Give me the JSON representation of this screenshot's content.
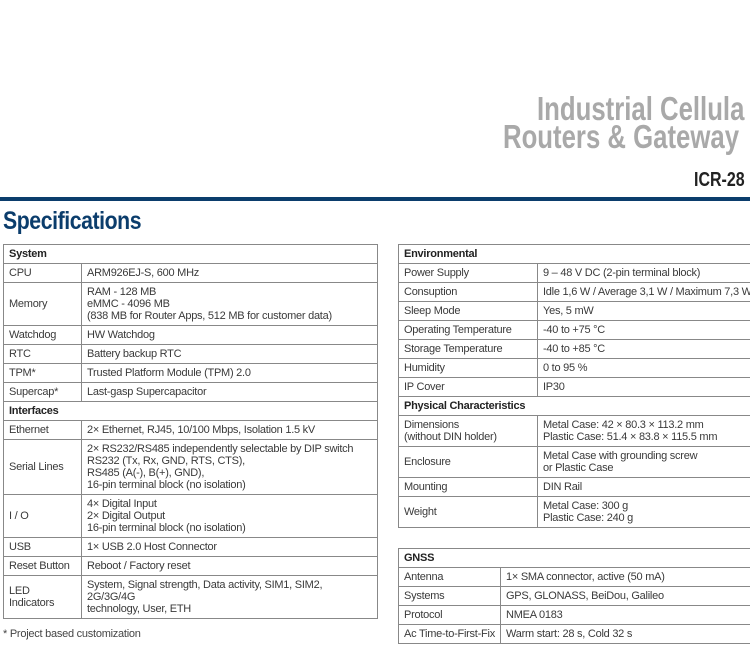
{
  "header": {
    "line1": "Industrial Cellula",
    "line2": "Routers & Gateway",
    "model": "ICR-28",
    "accent_color": "#0b3d6c"
  },
  "title": "Specifications",
  "left_table": [
    {
      "section": "System"
    },
    {
      "key": "CPU",
      "value": "ARM926EJ-S, 600 MHz"
    },
    {
      "key": "Memory",
      "value": "RAM - 128 MB\neMMC - 4096 MB\n(838 MB for Router Apps, 512 MB for customer data)"
    },
    {
      "key": "Watchdog",
      "value": "HW Watchdog"
    },
    {
      "key": "RTC",
      "value": "Battery backup RTC"
    },
    {
      "key": "TPM*",
      "value": "Trusted Platform Module (TPM) 2.0"
    },
    {
      "key": "Supercap*",
      "value": "Last-gasp Supercapacitor"
    },
    {
      "section": "Interfaces"
    },
    {
      "key": "Ethernet",
      "value": "2× Ethernet, RJ45, 10/100 Mbps, Isolation 1.5 kV"
    },
    {
      "key": "Serial Lines",
      "value": "2× RS232/RS485 independently selectable by DIP switch\nRS232 (Tx, Rx, GND, RTS, CTS),\nRS485 (A(-), B(+), GND),\n16-pin terminal block (no isolation)"
    },
    {
      "key": "I / O",
      "value": "4× Digital Input\n2× Digital Output\n16-pin terminal block (no isolation)"
    },
    {
      "key": "USB",
      "value": "1× USB 2.0 Host Connector"
    },
    {
      "key": "Reset Button",
      "value": "Reboot / Factory reset"
    },
    {
      "key": "LED Indicators",
      "value": "System, Signal strength, Data activity, SIM1, SIM2, 2G/3G/4G\ntechnology, User, ETH"
    }
  ],
  "footnote": "* Project based customization",
  "right_table": [
    {
      "section": "Environmental"
    },
    {
      "key": "Power Supply",
      "value": "9 – 48 V DC (2-pin terminal block)"
    },
    {
      "key": "Consuption",
      "value": "Idle 1,6 W / Average 3,1 W / Maximum 7,3 W"
    },
    {
      "key": "Sleep Mode",
      "value": "Yes, 5 mW"
    },
    {
      "key": "Operating Temperature",
      "value": "-40 to +75 °C"
    },
    {
      "key": "Storage Temperature",
      "value": "-40 to +85 °C"
    },
    {
      "key": "Humidity",
      "value": "0 to 95 %"
    },
    {
      "key": "IP Cover",
      "value": "IP30"
    },
    {
      "section": "Physical Characteristics"
    },
    {
      "key": "Dimensions\n(without DIN holder)",
      "value": "Metal Case: 42 × 80.3 × 113.2 mm\nPlastic Case: 51.4 × 83.8 × 115.5 mm"
    },
    {
      "key": "Enclosure",
      "value": "Metal Case with grounding screw\nor Plastic Case"
    },
    {
      "key": "Mounting",
      "value": "DIN Rail"
    },
    {
      "key": "Weight",
      "value": "Metal Case: 300 g\nPlastic Case: 240 g"
    }
  ],
  "gnss_table": [
    {
      "section": "GNSS"
    },
    {
      "key": "Antenna",
      "value": "1× SMA connector, active (50 mA)"
    },
    {
      "key": "Systems",
      "value": "GPS, GLONASS, BeiDou, Galileo"
    },
    {
      "key": "Protocol",
      "value": "NMEA 0183"
    },
    {
      "key": "Ac Time-to-First-Fix",
      "value": "Warm start: 28 s, Cold 32 s"
    }
  ]
}
